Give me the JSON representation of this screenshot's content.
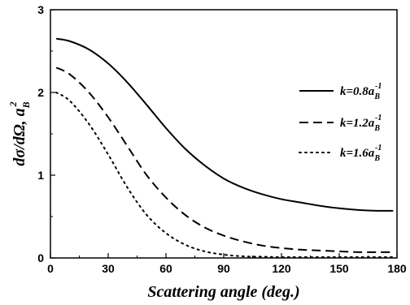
{
  "chart_data": {
    "type": "line",
    "xlabel": "Scattering angle (deg.)",
    "ylabel": {
      "main": "dσ/dΩ, a",
      "sub": "B",
      "sup": "2"
    },
    "xlim": [
      0,
      180
    ],
    "ylim": [
      0,
      3
    ],
    "xticks": [
      "0",
      "30",
      "60",
      "90",
      "120",
      "150",
      "180"
    ],
    "yticks": [
      "0",
      "1",
      "2",
      "3"
    ],
    "grid": false,
    "legend_position": "right",
    "series": [
      {
        "name": "k=0.8a_B^-1",
        "legend": {
          "main": "k=0.8a",
          "sub": "B",
          "sup": "-1"
        },
        "style": "solid",
        "x": [
          3,
          10,
          20,
          30,
          40,
          50,
          60,
          70,
          80,
          90,
          100,
          110,
          120,
          130,
          140,
          150,
          160,
          170,
          178
        ],
        "y": [
          2.65,
          2.62,
          2.52,
          2.35,
          2.12,
          1.85,
          1.57,
          1.32,
          1.12,
          0.96,
          0.85,
          0.77,
          0.71,
          0.67,
          0.63,
          0.6,
          0.58,
          0.57,
          0.57
        ]
      },
      {
        "name": "k=1.2a_B^-1",
        "legend": {
          "main": "k=1.2a",
          "sub": "B",
          "sup": "-1"
        },
        "style": "dashed",
        "x": [
          3,
          10,
          20,
          30,
          40,
          50,
          60,
          70,
          80,
          90,
          100,
          110,
          120,
          130,
          140,
          150,
          160,
          170,
          178
        ],
        "y": [
          2.3,
          2.22,
          2.0,
          1.7,
          1.35,
          1.0,
          0.73,
          0.52,
          0.37,
          0.27,
          0.2,
          0.15,
          0.12,
          0.1,
          0.09,
          0.08,
          0.07,
          0.07,
          0.07
        ]
      },
      {
        "name": "k=1.6a_B^-1",
        "legend": {
          "main": "k=1.6a",
          "sub": "B",
          "sup": "-1"
        },
        "style": "dotted",
        "x": [
          3,
          10,
          20,
          30,
          40,
          50,
          60,
          70,
          80,
          90,
          100,
          110,
          120,
          140,
          160,
          178
        ],
        "y": [
          2.0,
          1.9,
          1.62,
          1.25,
          0.85,
          0.52,
          0.3,
          0.16,
          0.08,
          0.04,
          0.02,
          0.015,
          0.01,
          0.01,
          0.01,
          0.01
        ]
      }
    ]
  }
}
